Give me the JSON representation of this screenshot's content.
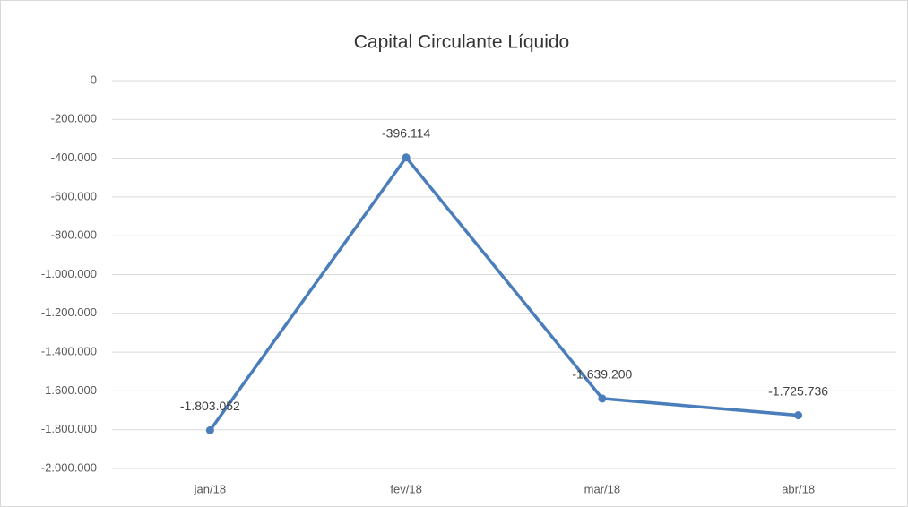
{
  "chart_data": {
    "type": "line",
    "title": "Capital Circulante Líquido",
    "categories": [
      "jan/18",
      "fev/18",
      "mar/18",
      "abr/18"
    ],
    "values": [
      -1803052,
      -396114,
      -1639200,
      -1725736
    ],
    "value_labels": [
      "-1.803.052",
      "-396.114",
      "-1.639.200",
      "-1.725.736"
    ],
    "color": "#4a7ebb",
    "ylim": [
      -2000000,
      0
    ],
    "yticks": [
      0,
      {
        "value": -200000,
        "label": "-200.000"
      },
      {
        "value": -400000,
        "label": "-400.000"
      },
      {
        "value": -600000,
        "label": "-600.000"
      },
      {
        "value": -800000,
        "label": "-800.000"
      },
      {
        "value": -1000000,
        "label": "-1.000.000"
      },
      {
        "value": -1200000,
        "label": "-1.200.000"
      },
      {
        "value": -1400000,
        "label": "-1.400.000"
      },
      {
        "value": -1600000,
        "label": "-1.600.000"
      },
      {
        "value": -1800000,
        "label": "-1.800.000"
      },
      {
        "value": -2000000,
        "label": "-2.000.000"
      }
    ],
    "grid": true
  }
}
